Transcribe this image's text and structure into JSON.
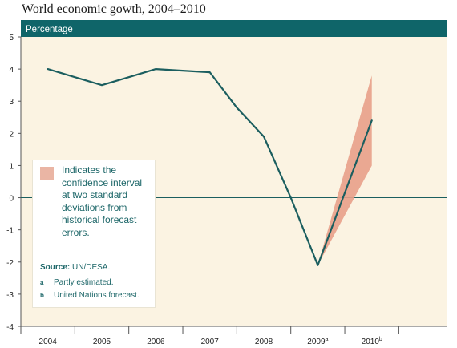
{
  "title": "World economic gowth, 2004–2010",
  "colors": {
    "header_bar": "#0f6569",
    "plot_background": "#fbf3e2",
    "line": "#1b5e5f",
    "confidence_band": "#e8a08a",
    "zero_line": "#1b5e5f"
  },
  "chart_data": {
    "type": "line",
    "title": "World economic gowth, 2004–2010",
    "ylabel": "Percentage",
    "xlabel": "",
    "ylim": [
      -4,
      5
    ],
    "yticks": [
      "5",
      "4",
      "3",
      "2",
      "1",
      "0",
      "-1",
      "-2",
      "-3",
      "-4"
    ],
    "xlim": [
      2004,
      2011
    ],
    "x_tick_labels": [
      {
        "label": "2004",
        "sup": ""
      },
      {
        "label": "2005",
        "sup": ""
      },
      {
        "label": "2006",
        "sup": ""
      },
      {
        "label": "2007",
        "sup": ""
      },
      {
        "label": "2008",
        "sup": ""
      },
      {
        "label": "2009",
        "sup": "a"
      },
      {
        "label": "2010",
        "sup": "b"
      }
    ],
    "series": [
      {
        "points": [
          [
            2004,
            4.0
          ],
          [
            2004.5,
            3.75
          ],
          [
            2005,
            3.5
          ],
          [
            2005.5,
            3.75
          ],
          [
            2006,
            4.0
          ],
          [
            2007,
            3.9
          ],
          [
            2007.5,
            2.8
          ],
          [
            2008,
            1.9
          ],
          [
            2008.5,
            0.0
          ],
          [
            2009,
            -2.1
          ],
          [
            2010,
            2.4
          ]
        ]
      }
    ],
    "confidence_interval": {
      "x": [
        2009,
        2010
      ],
      "upper": [
        -2.1,
        3.8
      ],
      "lower": [
        -2.1,
        1.0
      ]
    },
    "grid": false,
    "legend_position": "bottom-left"
  },
  "legend": {
    "confidence_text": "Indicates the confidence interval at two standard deviations from historical forecast errors.",
    "source_label": "Source:",
    "source_value": "UN/DESA.",
    "note_a_letter": "a",
    "note_a_text": "Partly estimated.",
    "note_b_letter": "b",
    "note_b_text": "United Nations forecast."
  }
}
